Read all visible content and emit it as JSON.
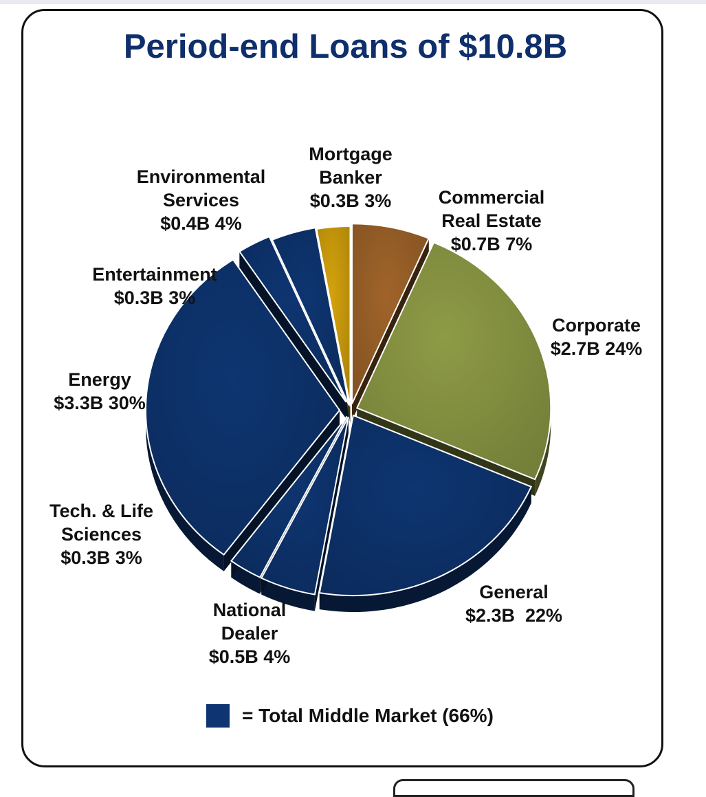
{
  "chart_data": {
    "type": "pie",
    "title": "Period-end Loans of $10.8B",
    "slices": [
      {
        "name": "Commercial Real Estate",
        "label_lines": [
          "Commercial",
          "Real Estate",
          "$0.7B 7%"
        ],
        "value": 0.7,
        "percent": 7,
        "color": "#a0642a",
        "middle_market": false
      },
      {
        "name": "Corporate",
        "label_lines": [
          "Corporate",
          "$2.7B 24%"
        ],
        "value": 2.7,
        "percent": 24,
        "color": "#8e9b45",
        "middle_market": false
      },
      {
        "name": "General",
        "label_lines": [
          "General",
          "$2.3B  22%"
        ],
        "value": 2.3,
        "percent": 22,
        "color": "#0e3571",
        "middle_market": true
      },
      {
        "name": "National Dealer",
        "label_lines": [
          "National",
          "Dealer",
          "$0.5B 4%"
        ],
        "value": 0.5,
        "percent": 4,
        "color": "#0e3571",
        "middle_market": true
      },
      {
        "name": "Tech. & Life Sciences",
        "label_lines": [
          "Tech. & Life",
          "Sciences",
          "$0.3B 3%"
        ],
        "value": 0.3,
        "percent": 3,
        "color": "#0e3571",
        "middle_market": true
      },
      {
        "name": "Energy",
        "label_lines": [
          "Energy",
          "$3.3B 30%"
        ],
        "value": 3.3,
        "percent": 30,
        "color": "#0e3571",
        "middle_market": true
      },
      {
        "name": "Entertainment",
        "label_lines": [
          "Entertainment",
          "$0.3B 3%"
        ],
        "value": 0.3,
        "percent": 3,
        "color": "#0e3571",
        "middle_market": true
      },
      {
        "name": "Environmental Services",
        "label_lines": [
          "Environmental",
          "Services",
          "$0.4B 4%"
        ],
        "value": 0.4,
        "percent": 4,
        "color": "#0e3571",
        "middle_market": true
      },
      {
        "name": "Mortgage Banker",
        "label_lines": [
          "Mortgage",
          "Banker",
          "$0.3B 3%"
        ],
        "value": 0.3,
        "percent": 3,
        "color": "#d4a20c",
        "middle_market": false
      }
    ],
    "legend": {
      "text": "= Total Middle Market (66%)",
      "color": "#0e3571",
      "placement": "bottom"
    }
  }
}
